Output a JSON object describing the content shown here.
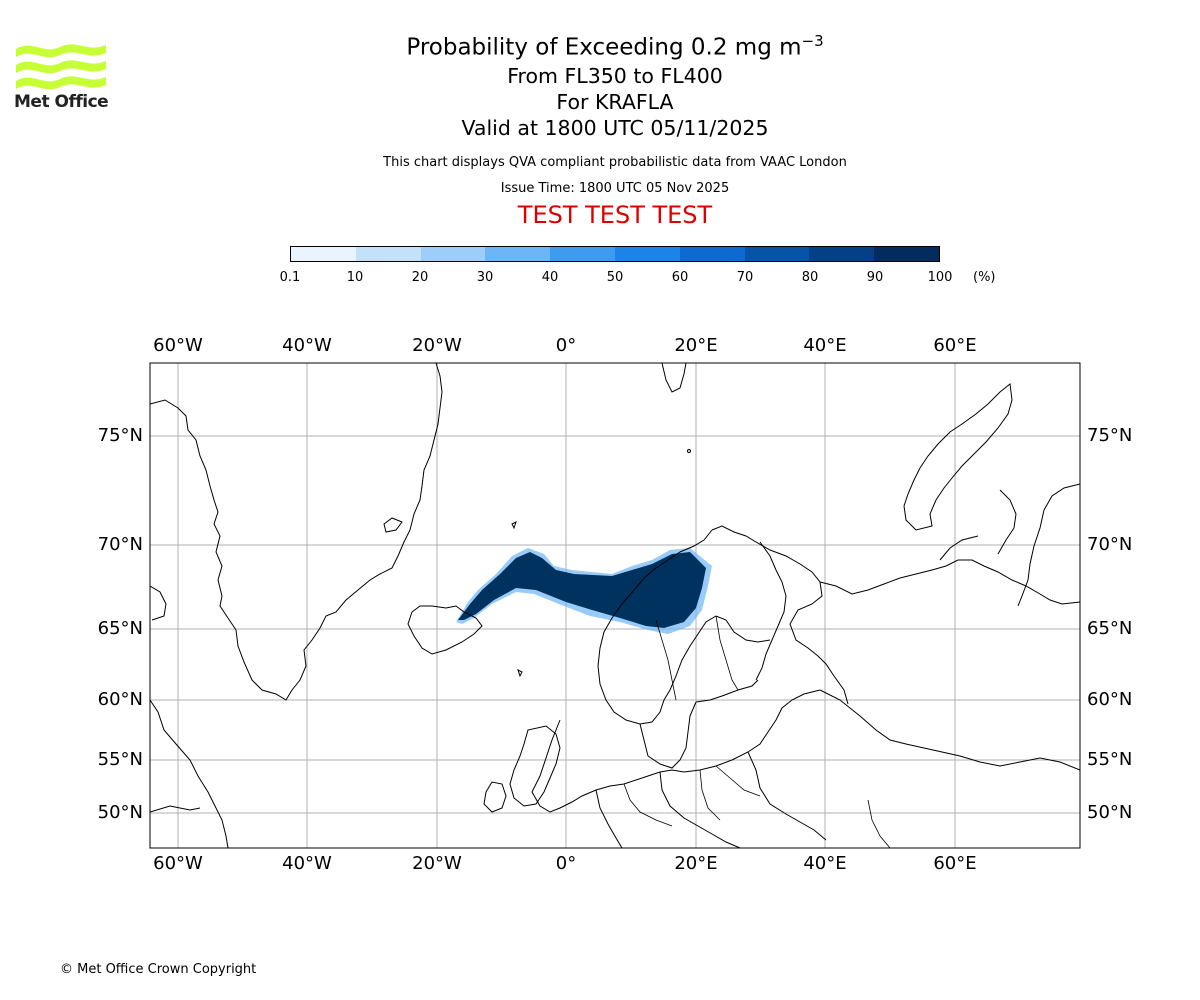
{
  "logo": {
    "text": "Met Office",
    "color": "#c6ff33"
  },
  "title": {
    "main_prefix": "Probability of Exceeding 0.2 mg m",
    "main_superscript": "−3",
    "levels": "From FL350 to FL400",
    "volcano": "For KRAFLA",
    "valid": "Valid at 1800 UTC 05/11/2025"
  },
  "subtitle": "This chart displays QVA compliant probabilistic data from VAAC London",
  "issue_time": "Issue Time: 1800 UTC 05 Nov 2025",
  "test_banner": "TEST TEST TEST",
  "colorbar": {
    "ticks": [
      "0.1",
      "10",
      "20",
      "30",
      "40",
      "50",
      "60",
      "70",
      "80",
      "90",
      "100"
    ],
    "unit": "(%)",
    "colors": [
      "#eaf4fe",
      "#c5e1fa",
      "#9dcdf8",
      "#6db5f6",
      "#3d9bf0",
      "#1c84e8",
      "#0c6ad0",
      "#0753a8",
      "#053f85",
      "#022c5e"
    ]
  },
  "map": {
    "top_lon_labels": [
      "60°W",
      "40°W",
      "20°W",
      "0°",
      "20°E",
      "40°E",
      "60°E"
    ],
    "bottom_lon_labels": [
      "60°W",
      "40°W",
      "20°W",
      "0°",
      "20°E",
      "40°E",
      "60°E"
    ],
    "left_lat_labels": [
      "75°N",
      "70°N",
      "65°N",
      "60°N",
      "55°N",
      "50°N"
    ],
    "right_lat_labels": [
      "75°N",
      "70°N",
      "65°N",
      "60°N",
      "55°N",
      "50°N"
    ],
    "plume_color": "#00325f",
    "plume_edge_color": "#6db5f6"
  },
  "copyright": "© Met Office Crown Copyright"
}
